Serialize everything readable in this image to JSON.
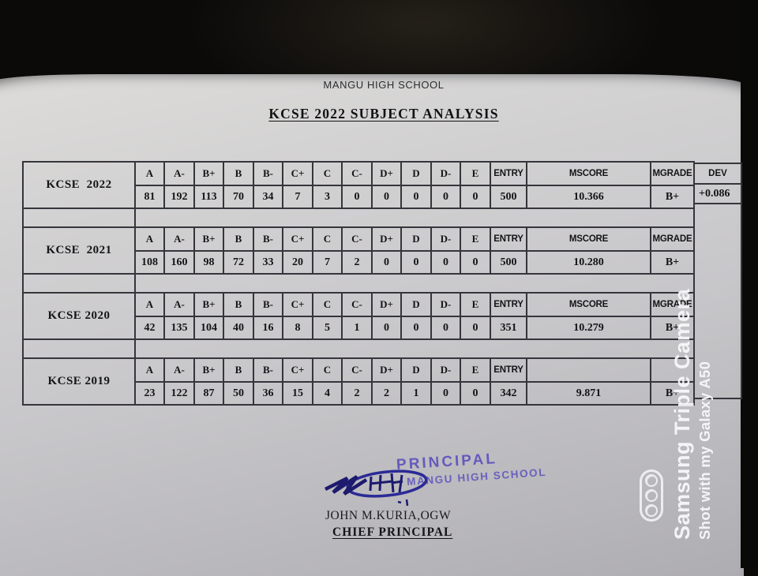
{
  "document": {
    "school_header": "MANGU HIGH SCHOOL",
    "title": "KCSE 2022 SUBJECT ANALYSIS"
  },
  "table": {
    "grade_headers": [
      "A",
      "A-",
      "B+",
      "B",
      "B-",
      "C+",
      "C",
      "C-",
      "D+",
      "D",
      "D-",
      "E"
    ],
    "entry_header": "ENTRY",
    "mscore_header": "MSCORE",
    "mgrade_header": "MGRADE",
    "dev_header": "DEV",
    "blocks": [
      {
        "year_label": "KCSE  2022",
        "grades": [
          81,
          192,
          113,
          70,
          34,
          7,
          3,
          0,
          0,
          0,
          0,
          0
        ],
        "entry": "500",
        "mscore": "10.366",
        "mgrade": "B+",
        "dev": "+0.086",
        "headers": {
          "entry": true,
          "mscore": true,
          "mgrade": true
        }
      },
      {
        "year_label": "KCSE  2021",
        "grades": [
          108,
          160,
          98,
          72,
          33,
          20,
          7,
          2,
          0,
          0,
          0,
          0
        ],
        "entry": "500",
        "mscore": "10.280",
        "mgrade": "B+",
        "dev": "",
        "headers": {
          "entry": true,
          "mscore": true,
          "mgrade": true
        }
      },
      {
        "year_label": "KCSE 2020",
        "grades": [
          42,
          135,
          104,
          40,
          16,
          8,
          5,
          1,
          0,
          0,
          0,
          0
        ],
        "entry": "351",
        "mscore": "10.279",
        "mgrade": "B+",
        "dev": "",
        "headers": {
          "entry": true,
          "mscore": true,
          "mgrade": true
        }
      },
      {
        "year_label": "KCSE 2019",
        "grades": [
          23,
          122,
          87,
          50,
          36,
          15,
          4,
          2,
          2,
          1,
          0,
          0
        ],
        "entry": "342",
        "mscore": "9.871",
        "mgrade": "B+",
        "dev": "",
        "headers": {
          "entry": true,
          "mscore": false,
          "mgrade": false
        }
      }
    ]
  },
  "stamp": {
    "line1": "PRINCIPAL",
    "line2": "MANGU HIGH SCHOOL"
  },
  "signatory": {
    "name": "JOHN M.KURIA,OGW",
    "title": "CHIEF PRINCIPAL"
  },
  "watermark": {
    "line1": "Samsung Triple Camera",
    "line2": "Shot with my Galaxy A50"
  },
  "colors": {
    "stamp_ink": "#5b50bd",
    "watermark": "rgba(248,248,250,0.95)",
    "paper": "#c7c6c9",
    "background": "#0b0a09",
    "table_line": "#35353b"
  }
}
